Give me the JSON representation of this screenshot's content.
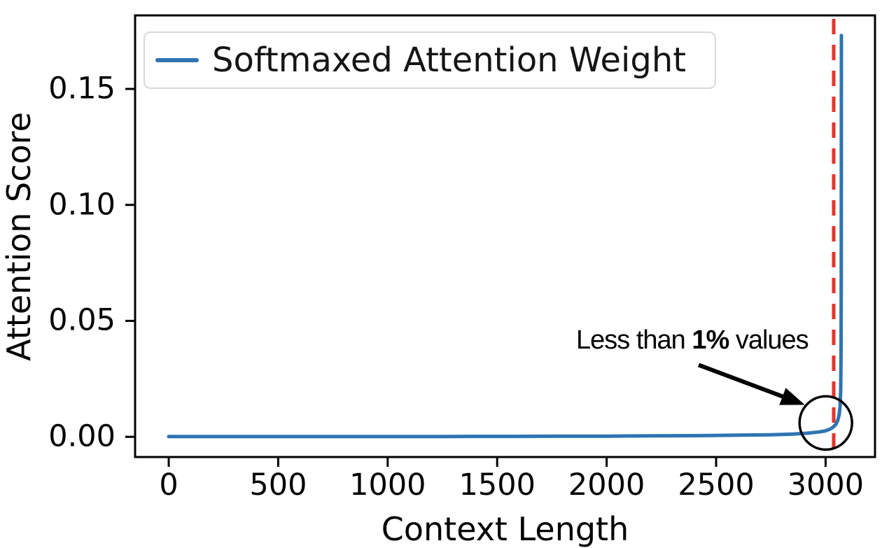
{
  "chart_data": {
    "type": "line",
    "title": "",
    "xlabel": "Context Length",
    "ylabel": "Attention Score",
    "xlim": [
      -153.6,
      3225.6
    ],
    "ylim": [
      -0.0087,
      0.1817
    ],
    "xticks": [
      0,
      500,
      1000,
      1500,
      2000,
      2500,
      3000
    ],
    "yticks": [
      0,
      0.05,
      0.1,
      0.15
    ],
    "ytick_labels": [
      "0.00",
      "0.05",
      "0.10",
      "0.15"
    ],
    "grid": false,
    "legend": {
      "position": "upper left",
      "entries": [
        {
          "label": "Softmaxed Attention Weight",
          "color": "#2f74b3"
        }
      ]
    },
    "series": [
      {
        "name": "Softmaxed Attention Weight",
        "color": "#2f74b3",
        "points": [
          [
            0,
            0.0001
          ],
          [
            200,
            0.0001
          ],
          [
            400,
            0.0001
          ],
          [
            600,
            0.0001
          ],
          [
            800,
            0.0001
          ],
          [
            1000,
            0.0001
          ],
          [
            1200,
            0.0001
          ],
          [
            1400,
            0.0002
          ],
          [
            1600,
            0.0002
          ],
          [
            1800,
            0.0003
          ],
          [
            2000,
            0.0003
          ],
          [
            2200,
            0.0004
          ],
          [
            2400,
            0.0005
          ],
          [
            2600,
            0.0007
          ],
          [
            2750,
            0.0009
          ],
          [
            2850,
            0.0012
          ],
          [
            2920,
            0.0016
          ],
          [
            2970,
            0.0021
          ],
          [
            3000,
            0.0026
          ],
          [
            3020,
            0.0033
          ],
          [
            3035,
            0.0042
          ],
          [
            3048,
            0.0055
          ],
          [
            3056,
            0.0072
          ],
          [
            3062,
            0.0095
          ],
          [
            3066,
            0.013
          ],
          [
            3069,
            0.02
          ],
          [
            3070.5,
            0.035
          ],
          [
            3071.5,
            0.07
          ],
          [
            3072,
            0.173
          ]
        ]
      }
    ],
    "vline": {
      "x": 3037,
      "color": "#e5352b",
      "style": "dashed"
    },
    "annotations": {
      "circle": {
        "x": 3001,
        "y": 0.006,
        "rx": 120,
        "ry": 0.0115
      },
      "arrow": {
        "from": [
          2420,
          0.031
        ],
        "to": [
          2905,
          0.0138
        ]
      },
      "text": {
        "prefix": "Less than ",
        "bold": "1%",
        "suffix": " values"
      }
    },
    "colors": {
      "axis": "#000000",
      "annotation": "#000000"
    }
  }
}
